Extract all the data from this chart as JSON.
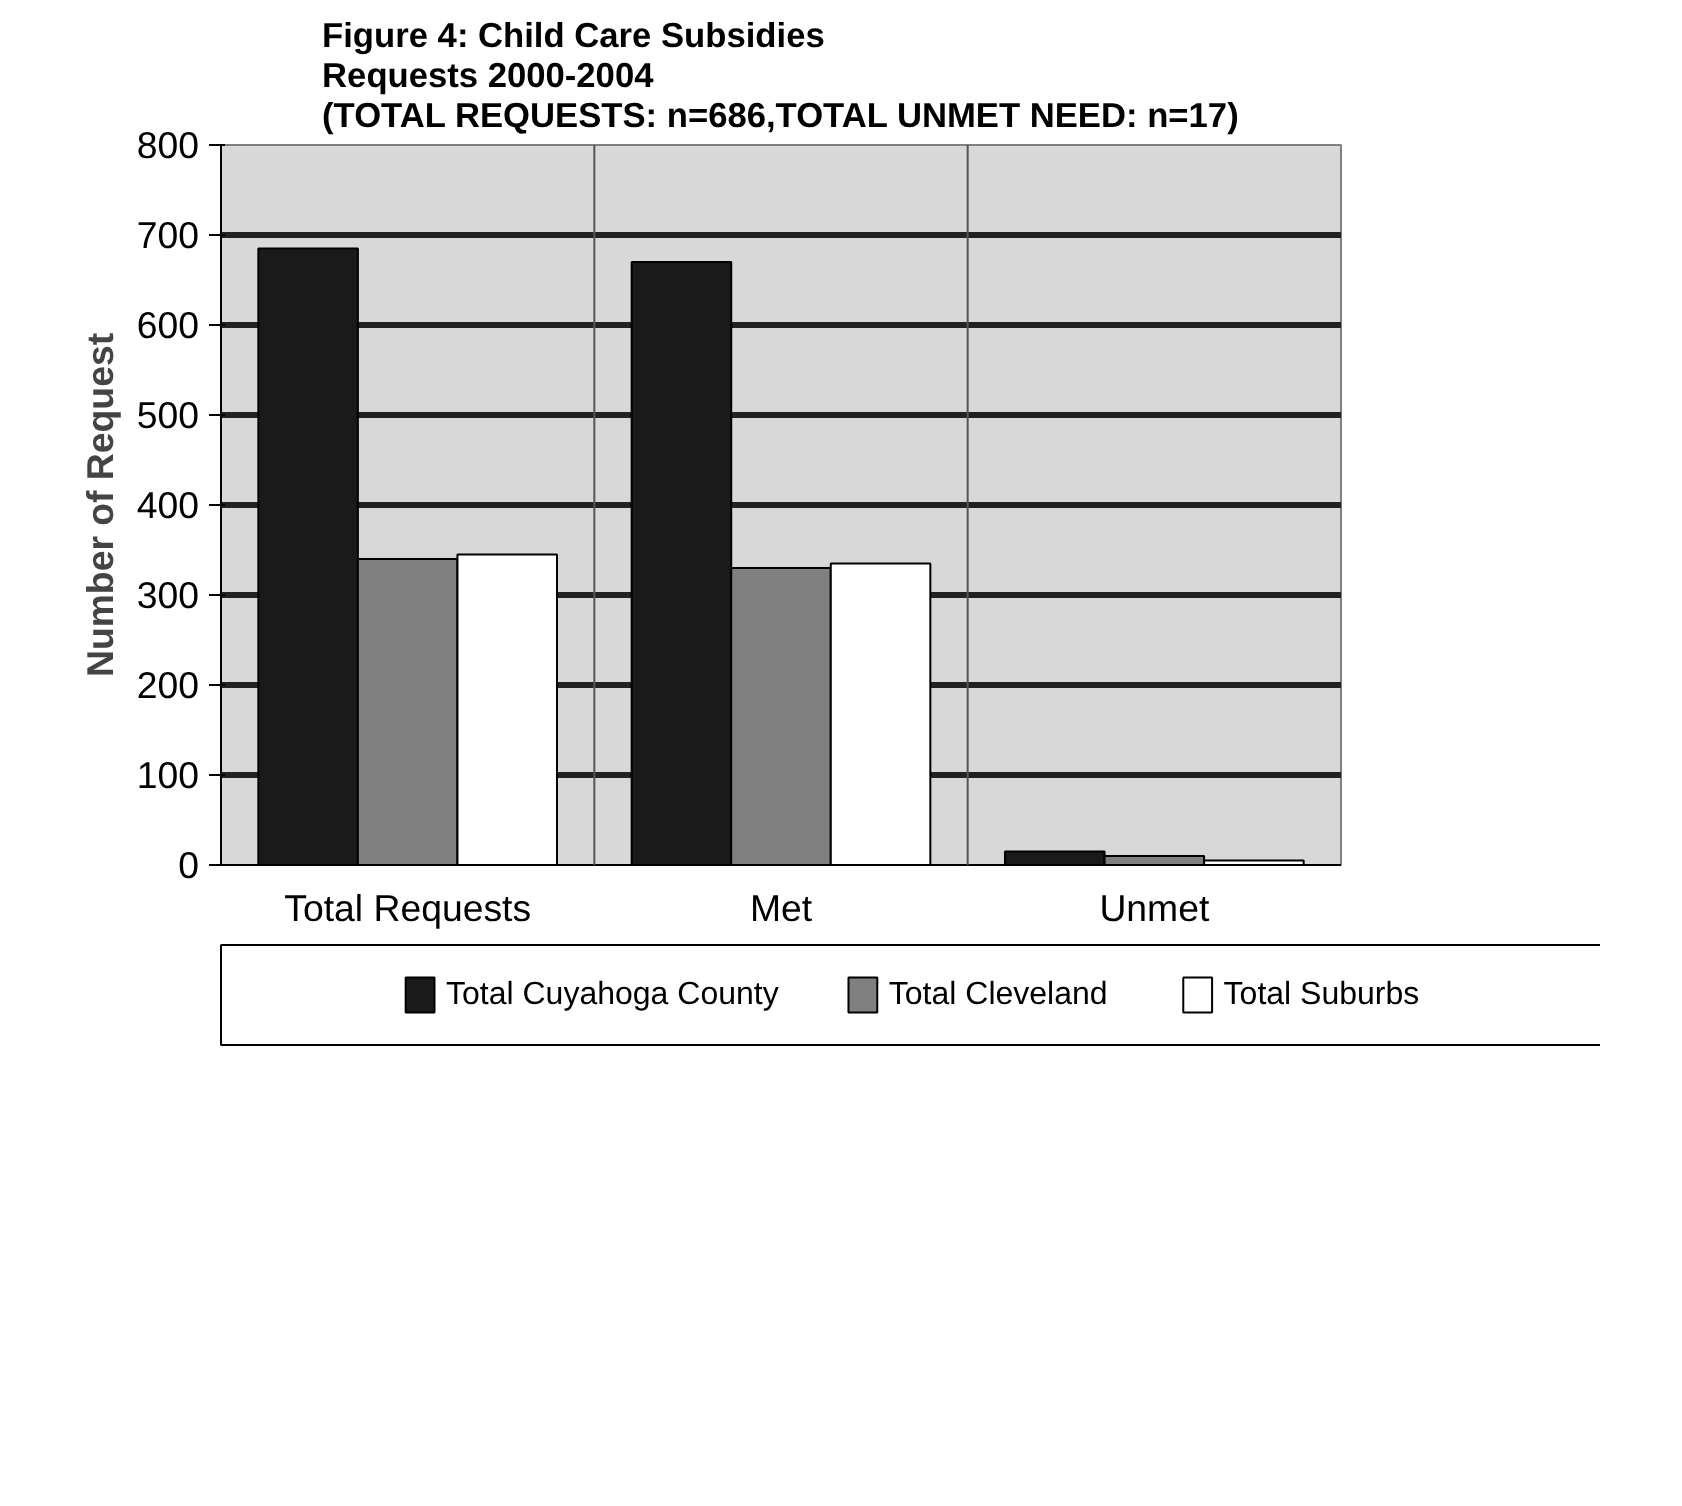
{
  "chart_data": {
    "type": "bar",
    "title": "Figure 4:  Child Care Subsidies\nRequests 2000-2004\n(TOTAL REQUESTS: n=686,TOTAL UNMET NEED: n=17)",
    "ylabel": "Number of Request",
    "categories": [
      "Total Requests",
      "Met",
      "Unmet"
    ],
    "series": [
      {
        "name": "Total Cuyahoga County",
        "color": "#1a1a1a",
        "values": [
          685,
          670,
          15
        ]
      },
      {
        "name": "Total Cleveland",
        "color": "#808080",
        "values": [
          340,
          330,
          10
        ]
      },
      {
        "name": "Total Suburbs",
        "color": "#ffffff",
        "values": [
          345,
          335,
          5
        ]
      }
    ],
    "ylim": [
      0,
      800
    ],
    "yticks": [
      0,
      100,
      200,
      300,
      400,
      500,
      600,
      700,
      800
    ],
    "grid": "y",
    "legend": "bottom"
  }
}
